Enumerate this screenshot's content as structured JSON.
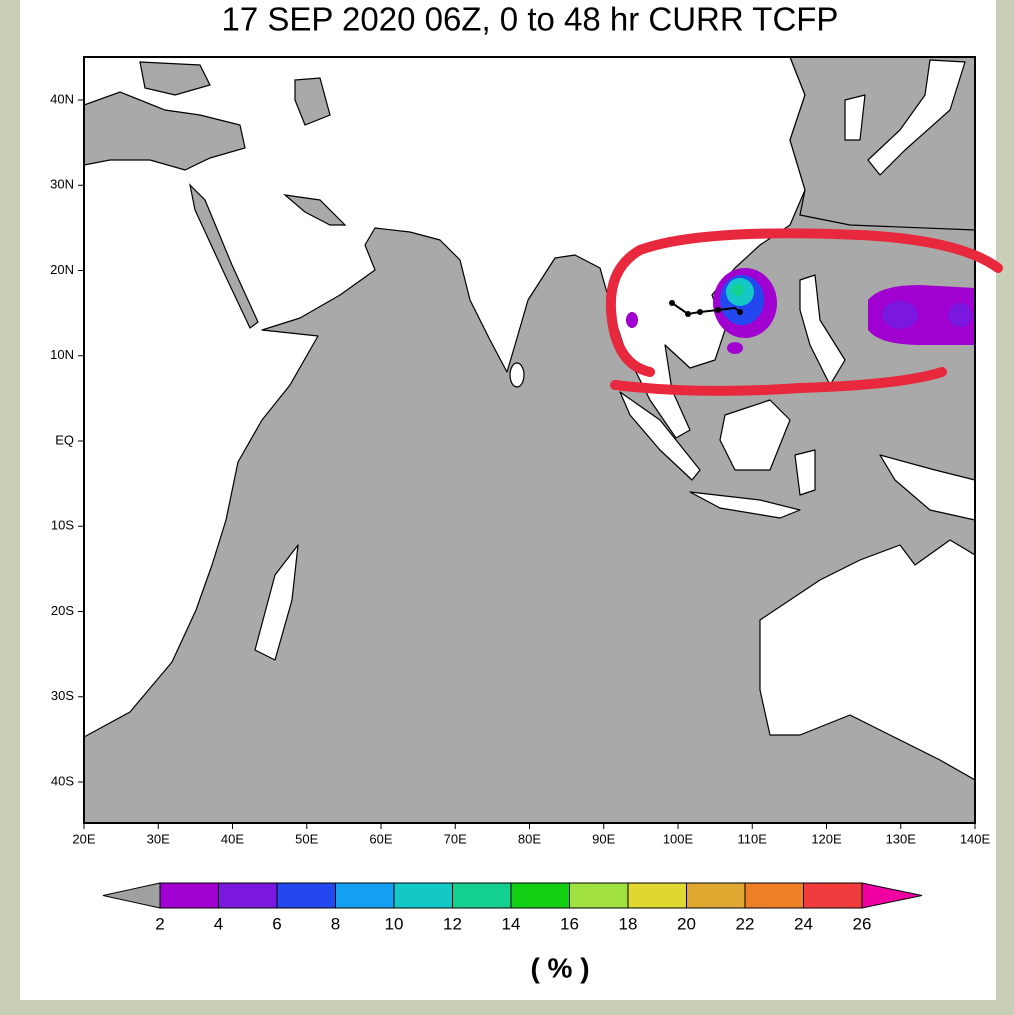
{
  "title": "17 SEP 2020 06Z,  0 to  48 hr CURR TCFP",
  "lat_labels": [
    "40N",
    "30N",
    "20N",
    "10N",
    "EQ",
    "10S",
    "20S",
    "30S",
    "40S"
  ],
  "lon_labels": [
    "20E",
    "30E",
    "40E",
    "50E",
    "60E",
    "70E",
    "80E",
    "90E",
    "100E",
    "110E",
    "120E",
    "130E",
    "140E"
  ],
  "colorbar": {
    "levels": [
      2,
      4,
      6,
      8,
      10,
      12,
      14,
      16,
      18,
      20,
      22,
      24,
      26
    ],
    "colors": [
      "#a000d0",
      "#7a18e0",
      "#2448f0",
      "#14a0f0",
      "#14c8c8",
      "#14d090",
      "#14d014",
      "#a0e040",
      "#e0d830",
      "#e0a830",
      "#f08028",
      "#f03c3c"
    ],
    "under_color": "#a0a0a0",
    "over_color": "#f000a0",
    "unit_label": "( % )"
  }
}
